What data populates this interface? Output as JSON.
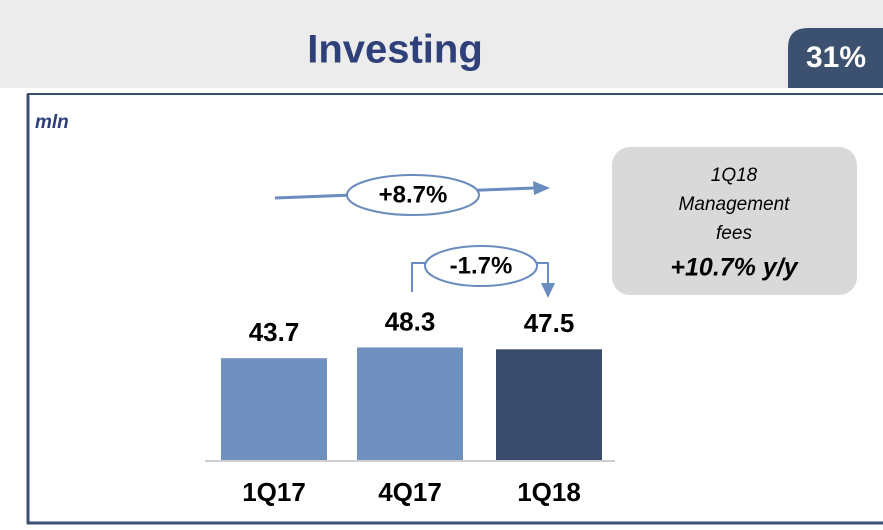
{
  "chart_data": {
    "type": "bar",
    "title": "Investing",
    "badge": "31%",
    "unit_label": "mln",
    "categories": [
      "1Q17",
      "4Q17",
      "1Q18"
    ],
    "values": [
      43.7,
      48.3,
      47.5
    ],
    "colors": [
      "#7090bf",
      "#7090bf",
      "#3b4b6c"
    ],
    "annotations": [
      "+8.7%",
      "-1.7%"
    ],
    "callout": [
      "1Q18",
      "Management",
      "fees",
      "+10.7% y/y"
    ]
  }
}
